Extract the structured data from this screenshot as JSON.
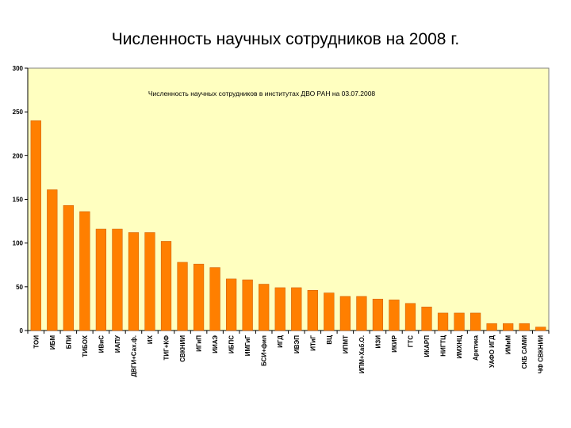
{
  "slide": {
    "title": "Численность научных сотрудников на 2008 г."
  },
  "colors": {
    "bar": "#ff7f00",
    "bar_edge": "#c85a00",
    "plot_bg": "#ffffc0",
    "axis": "#000000"
  },
  "chart_data": {
    "type": "bar",
    "title": "Численность научных сотрудников в институтах ДВО РАН на 03.07.2008",
    "xlabel": "",
    "ylabel": "",
    "ylim": [
      0,
      300
    ],
    "yticks": [
      0,
      50,
      100,
      150,
      200,
      250,
      300
    ],
    "categories": [
      "ТОИ",
      "ИБМ",
      "БПИ",
      "ТИБОХ",
      "ИВиС",
      "ИАПУ",
      "ДВГИ+Сах.ф.",
      "ИХ",
      "ТИГ+КФ",
      "СВКНИИ",
      "ИГиП",
      "ИИАЭ",
      "ИБПС",
      "ИМГиГ",
      "БСИ+фил",
      "ИГД",
      "ИВЭП",
      "ИТиГ",
      "ВЦ",
      "ИПМТ",
      "ИПМ+Хаб.О.",
      "ИЗИ",
      "ИКИР",
      "ГТС",
      "ИКАРП",
      "НИГТЦ",
      "ИМХНЦ",
      "Арктика",
      "УАФО ИГД",
      "ИМиМ",
      "СКБ САМИ",
      "ЧФ СВКНИИ"
    ],
    "values": [
      240,
      161,
      143,
      136,
      116,
      116,
      112,
      112,
      102,
      78,
      76,
      72,
      59,
      58,
      53,
      49,
      49,
      46,
      43,
      39,
      39,
      36,
      35,
      31,
      27,
      20,
      20,
      20,
      8,
      8,
      8,
      4
    ],
    "grid": false,
    "legend": "none"
  }
}
